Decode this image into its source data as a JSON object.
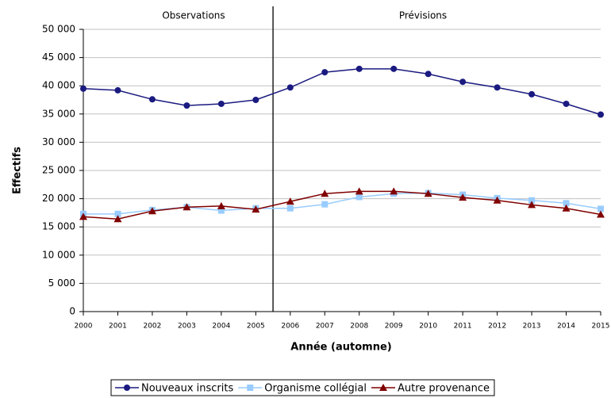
{
  "chart_data": {
    "type": "line",
    "annotations": [
      "Observations",
      "Prévisions"
    ],
    "xlabel": "Année (automne)",
    "ylabel": "Effectifs",
    "categories": [
      "2000",
      "2001",
      "2002",
      "2003",
      "2004",
      "2005",
      "2006",
      "2007",
      "2008",
      "2009",
      "2010",
      "2011",
      "2012",
      "2013",
      "2014",
      "2015"
    ],
    "series": [
      {
        "name": "Nouveaux inscrits",
        "color": "#1a1a80",
        "marker": "circle",
        "values": [
          39500,
          39200,
          37600,
          36500,
          36800,
          37500,
          39700,
          42400,
          43000,
          43000,
          42100,
          40700,
          39700,
          38500,
          36800,
          34900
        ]
      },
      {
        "name": "Organisme collégial",
        "color": "#99ccff",
        "marker": "square",
        "values": [
          17300,
          17300,
          18000,
          18500,
          17900,
          18300,
          18300,
          19000,
          20300,
          20900,
          21000,
          20700,
          20100,
          19700,
          19200,
          18200
        ]
      },
      {
        "name": "Autre provenance",
        "color": "#800000",
        "marker": "triangle",
        "values": [
          16800,
          16400,
          17800,
          18500,
          18700,
          18100,
          19500,
          20900,
          21300,
          21300,
          20900,
          20200,
          19700,
          18900,
          18300,
          17200
        ]
      }
    ],
    "ylim": [
      0,
      50000
    ],
    "yticks": [
      0,
      {
        "value": 5000,
        "label": "5 000"
      },
      {
        "value": 10000,
        "label": "10 000"
      },
      {
        "value": 15000,
        "label": "15 000"
      },
      {
        "value": 20000,
        "label": "20 000"
      },
      {
        "value": 25000,
        "label": "25 000"
      },
      {
        "value": 30000,
        "label": "30 000"
      },
      {
        "value": 35000,
        "label": "35 000"
      },
      {
        "value": 40000,
        "label": "40 000"
      },
      {
        "value": 45000,
        "label": "45 000"
      },
      {
        "value": 50000,
        "label": "50 000"
      }
    ],
    "grid": true,
    "legend": "bottom"
  }
}
